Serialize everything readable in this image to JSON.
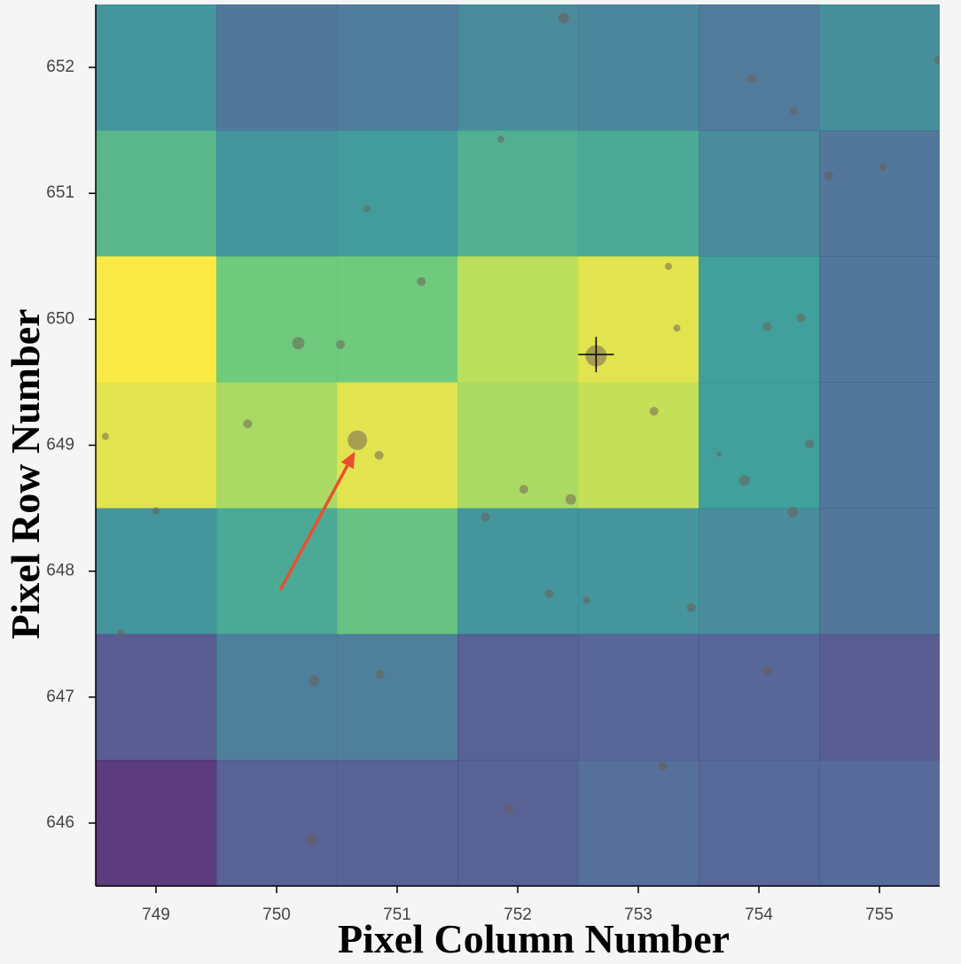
{
  "chart_data": {
    "type": "heatmap",
    "x_label": "Pixel Column Number",
    "y_label": "Pixel Row Number",
    "xlim": [
      748.5,
      755.5
    ],
    "ylim": [
      645.5,
      652.5
    ],
    "xticks": [
      749,
      750,
      751,
      752,
      753,
      754,
      755
    ],
    "yticks": [
      646,
      647,
      648,
      649,
      650,
      651,
      652
    ],
    "colormap": "viridis",
    "columns": [
      749,
      750,
      751,
      752,
      753,
      754,
      755
    ],
    "rows": [
      652,
      651,
      650,
      649,
      648,
      647,
      646
    ],
    "z": [
      [
        0.45,
        0.3,
        0.33,
        0.4,
        0.38,
        0.32,
        0.42
      ],
      [
        0.62,
        0.45,
        0.48,
        0.58,
        0.55,
        0.4,
        0.3
      ],
      [
        1.0,
        0.72,
        0.72,
        0.88,
        0.95,
        0.5,
        0.3
      ],
      [
        0.95,
        0.85,
        0.95,
        0.85,
        0.9,
        0.5,
        0.3
      ],
      [
        0.45,
        0.55,
        0.68,
        0.45,
        0.45,
        0.4,
        0.3
      ],
      [
        0.2,
        0.35,
        0.35,
        0.22,
        0.23,
        0.23,
        0.2
      ],
      [
        0.08,
        0.22,
        0.22,
        0.22,
        0.27,
        0.24,
        0.25
      ]
    ],
    "sources": {
      "color": "#6e5a52",
      "x": [
        750.67,
        752.65,
        750.18,
        750.53,
        751.2,
        749.76,
        750.85,
        753.13,
        753.88,
        754.28,
        752.44,
        752.05,
        751.73,
        752.26,
        752.57,
        753.44,
        750.31,
        750.86,
        750.29,
        751.93,
        753.2,
        754.07,
        754.07,
        754.35,
        754.42,
        752.38,
        753.94,
        754.29,
        754.58,
        755.03,
        750.75,
        751.86,
        753.32,
        753.25,
        748.58,
        749.0,
        748.71,
        753.67,
        755.49
      ],
      "y": [
        649.04,
        649.71,
        649.81,
        649.8,
        650.3,
        649.17,
        648.92,
        649.27,
        648.72,
        648.47,
        648.57,
        648.65,
        648.43,
        647.82,
        647.77,
        647.71,
        647.13,
        647.18,
        645.87,
        646.11,
        646.45,
        647.21,
        649.94,
        650.01,
        649.01,
        652.39,
        651.91,
        651.65,
        651.14,
        651.21,
        650.88,
        651.43,
        649.93,
        650.42,
        649.07,
        648.48,
        647.51,
        648.93,
        652.06
      ],
      "sizes": [
        11,
        12,
        7,
        5,
        5,
        5,
        5,
        5,
        6,
        6,
        6,
        5,
        5,
        5,
        4,
        5,
        6,
        5,
        6,
        5,
        5,
        5,
        5,
        5,
        5,
        6,
        5,
        4,
        5,
        4,
        4,
        4,
        4,
        4,
        4,
        4,
        4,
        3,
        5
      ]
    },
    "target": {
      "x": 752.65,
      "y": 649.72
    },
    "arrow": {
      "color": "#e8502f",
      "x": [
        750.03,
        750.65
      ],
      "y": [
        647.85,
        648.95
      ]
    }
  }
}
